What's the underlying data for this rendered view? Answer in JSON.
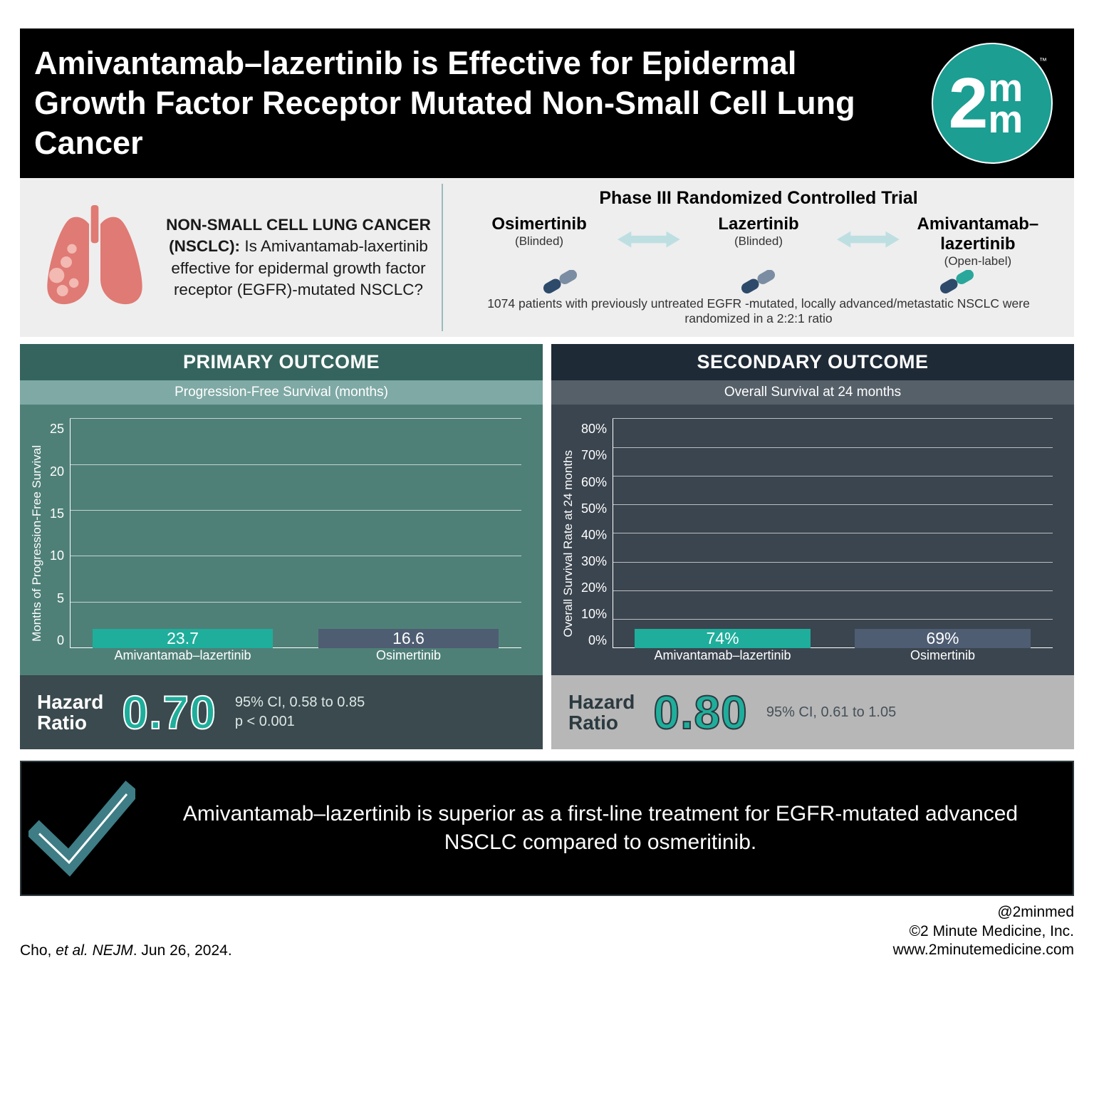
{
  "header": {
    "title": "Amivantamab–lazertinib is Effective for Epidermal Growth Factor Receptor Mutated Non-Small Cell Lung Cancer",
    "logo": {
      "big": "2",
      "small": "m",
      "tm": "™",
      "bg": "#1c9e92"
    }
  },
  "intro": {
    "lungs_color": "#e07a74",
    "question_bold": "NON-SMALL CELL LUNG CANCER (NSCLC):",
    "question_rest": " Is Amivantamab-laxertinib effective for epidermal growth factor receptor (EGFR)-mutated NSCLC?",
    "trial_title": "Phase III Randomized Controlled Trial",
    "arrow_color": "#bedfe2",
    "arms": [
      {
        "name": "Osimertinib",
        "sub": "(Blinded)",
        "pill_left": "#2e4a6b",
        "pill_right": "#7b8da2"
      },
      {
        "name": "Lazertinib",
        "sub": "(Blinded)",
        "pill_left": "#2e4a6b",
        "pill_right": "#7b8da2"
      },
      {
        "name": "Amivantamab–lazertinib",
        "sub": "(Open-label)",
        "pill_left": "#2e4a6b",
        "pill_right": "#2aa79b"
      }
    ],
    "footnote": "1074 patients with previously untreated EGFR -mutated, locally advanced/metastatic NSCLC were randomized in a 2:2:1 ratio"
  },
  "primary": {
    "title": "PRIMARY OUTCOME",
    "subtitle": "Progression-Free Survival (months)",
    "ylabel": "Months of Progression-Free Survival",
    "ylim": [
      0,
      25
    ],
    "ytick_step": 5,
    "bars": [
      {
        "label": "Amivantamab–lazertinib",
        "value": 23.7,
        "value_text": "23.7",
        "color": "#1fae9b"
      },
      {
        "label": "Osimertinib",
        "value": 16.6,
        "value_text": "16.6",
        "color": "#4e5d72"
      }
    ],
    "hr_label": "Hazard Ratio",
    "hr_value": "0.70",
    "ci": "95% CI, 0.58 to 0.85",
    "p": "p < 0.001"
  },
  "secondary": {
    "title": "SECONDARY OUTCOME",
    "subtitle": "Overall Survival at 24 months",
    "ylabel": "Overall Survival Rate at 24 months",
    "ylim": [
      0,
      80
    ],
    "ytick_step": 10,
    "y_suffix": "%",
    "bars": [
      {
        "label": "Amivantamab–lazertinib",
        "value": 74,
        "value_text": "74%",
        "color": "#1fae9b"
      },
      {
        "label": "Osimertinib",
        "value": 69,
        "value_text": "69%",
        "color": "#4e5d72"
      }
    ],
    "hr_label": "Hazard Ratio",
    "hr_value": "0.80",
    "ci": "95% CI, 0.61 to 1.05",
    "p": ""
  },
  "conclusion": {
    "check_color": "#3e7d85",
    "text": "Amivantamab–lazertinib is superior as a first-line treatment for EGFR-mutated advanced NSCLC compared to osmeritinib."
  },
  "footer": {
    "left_author": "Cho, ",
    "left_em": "et al. NEJM",
    "left_rest": ". Jun 26, 2024.",
    "r1": "@2minmed",
    "r2": "©2 Minute Medicine, Inc.",
    "r3": "www.2minutemedicine.com"
  }
}
